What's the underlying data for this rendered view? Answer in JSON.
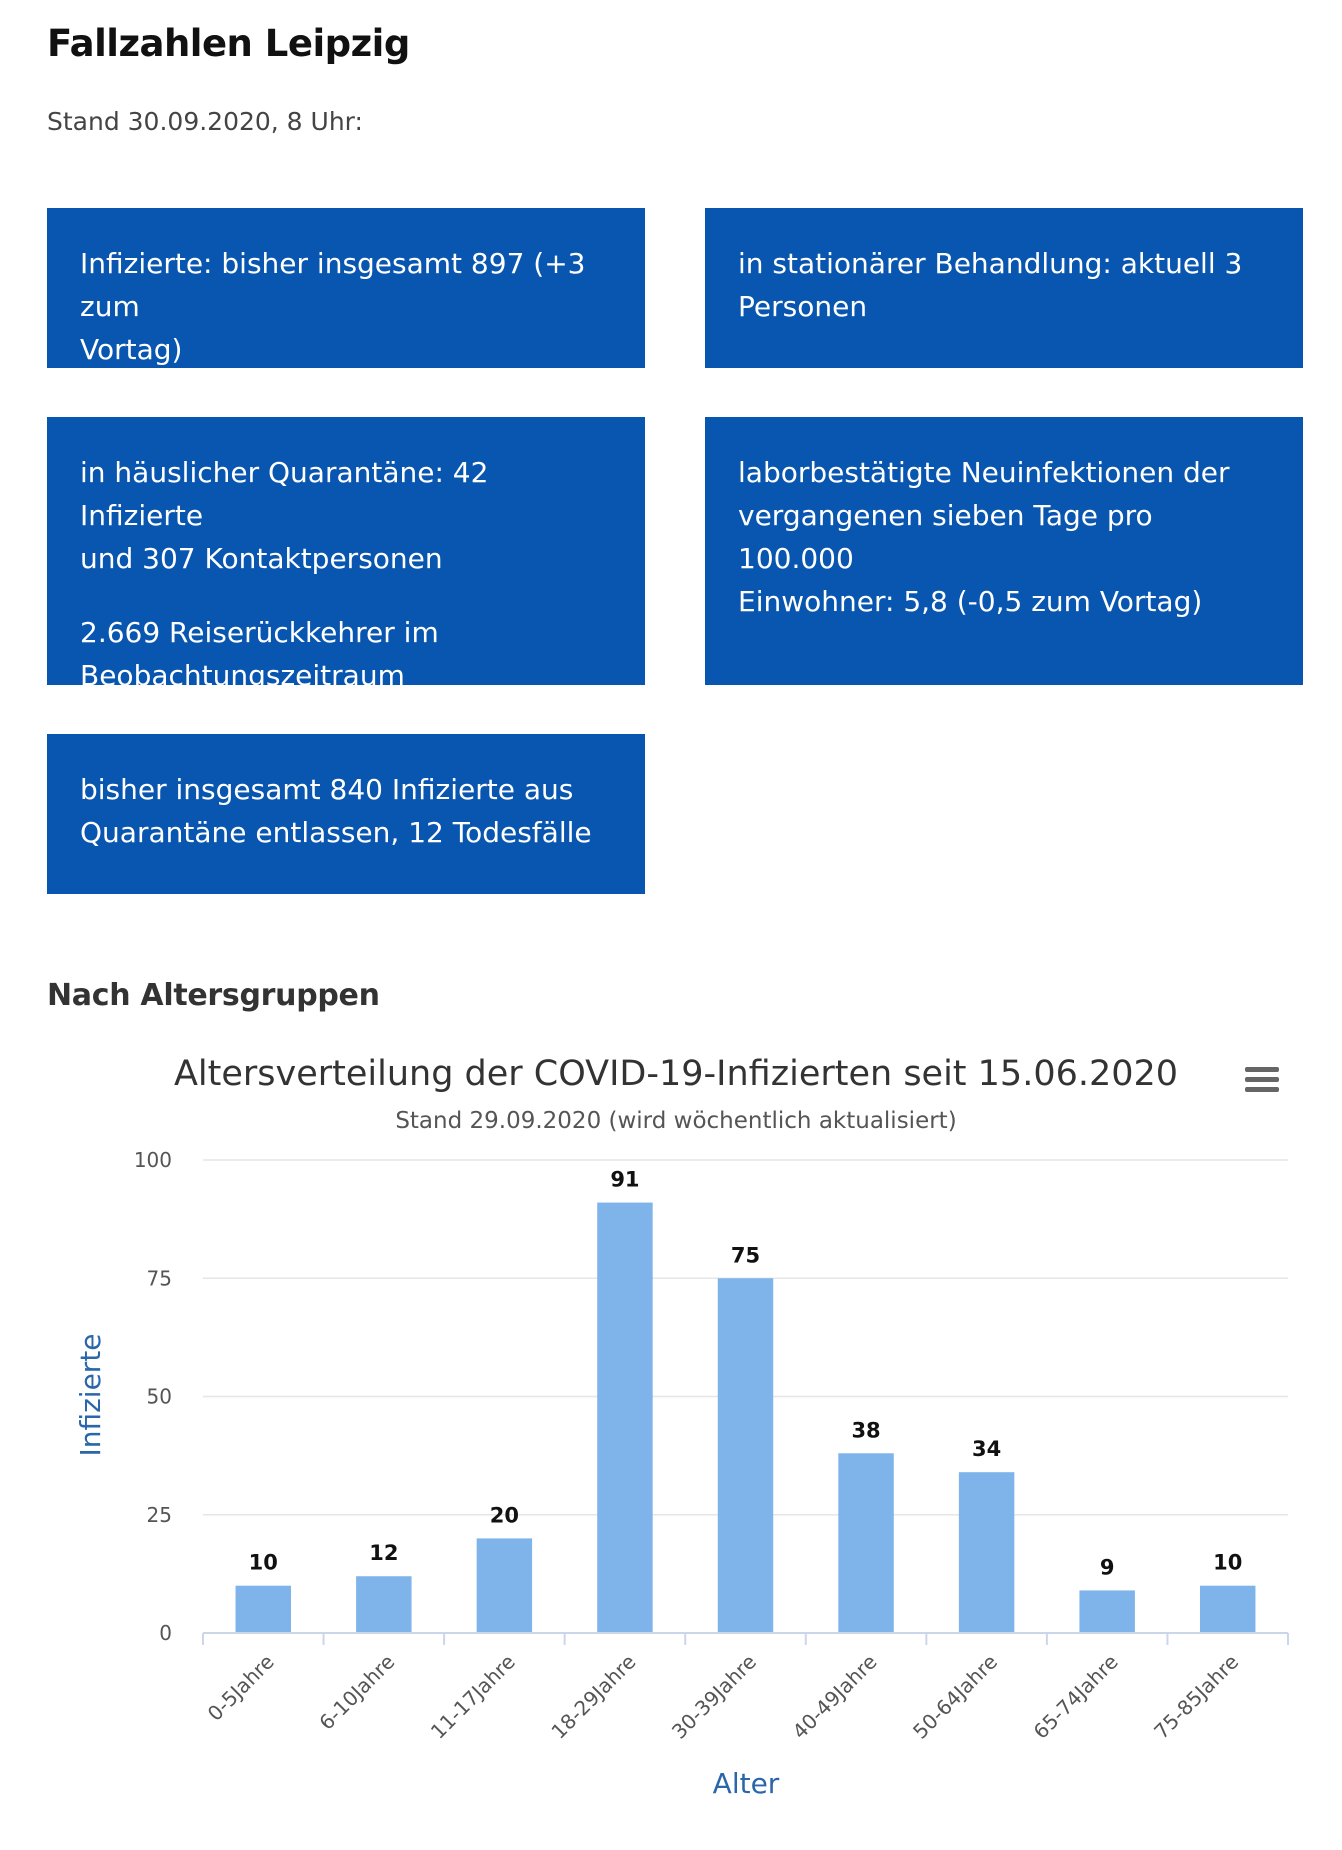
{
  "header": {
    "title": "Fallzahlen Leipzig",
    "stand": "Stand 30.09.2020, 8 Uhr:"
  },
  "boxes": [
    {
      "lines": [
        "Infizierte: bisher insgesamt 897 (+3 zum",
        "Vortag)"
      ]
    },
    {
      "lines": [
        "in stationärer Behandlung: aktuell 3",
        "Personen"
      ]
    },
    {
      "lines": [
        "in häuslicher Quarantäne: 42 Infizierte",
        "und 307 Kontaktpersonen"
      ],
      "lines2": [
        "2.669 Reiserückkehrer im",
        "Beobachtungszeitraum"
      ]
    },
    {
      "lines": [
        "laborbestätigte Neuinfektionen der",
        "vergangenen sieben Tage pro 100.000",
        "Einwohner: 5,8 (-0,5 zum Vortag)"
      ]
    },
    {
      "lines": [
        "bisher insgesamt 840 Infizierte aus",
        "Quarantäne entlassen, 12 Todesfälle"
      ]
    }
  ],
  "section": {
    "heading": "Nach Altersgruppen"
  },
  "colors": {
    "box_background": "#0956b0",
    "bar": "#7eb4ea",
    "axis_title": "#2a66aa"
  },
  "chart_data": {
    "type": "bar",
    "title": "Altersverteilung der COVID-19-Infizierten seit 15.06.2020",
    "subtitle": "Stand 29.09.2020 (wird wöchentlich aktualisiert)",
    "xlabel": "Alter",
    "ylabel": "Infizierte",
    "categories": [
      "0-5Jahre",
      "6-10Jahre",
      "11-17Jahre",
      "18-29Jahre",
      "30-39Jahre",
      "40-49Jahre",
      "50-64Jahre",
      "65-74Jahre",
      "75-85Jahre"
    ],
    "values": [
      10,
      12,
      20,
      91,
      75,
      38,
      34,
      9,
      10
    ],
    "ylim": [
      0,
      100
    ],
    "yticks": [
      0,
      25,
      50,
      75,
      100
    ],
    "grid": true,
    "legend": "none",
    "data_labels": true,
    "menu_icon": "hamburger-menu-icon"
  }
}
